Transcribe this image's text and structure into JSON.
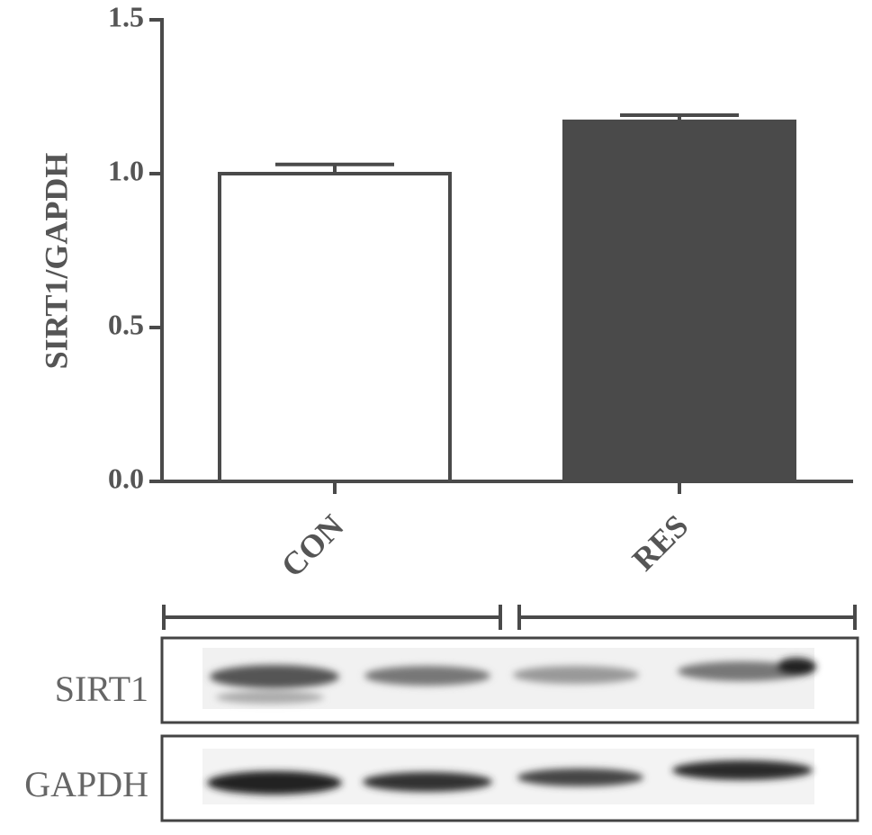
{
  "chart_data": {
    "type": "bar",
    "y_label": "SIRT1/GAPDH",
    "categories": [
      "CON",
      "RES"
    ],
    "values": [
      1.0,
      1.17
    ],
    "errors": [
      0.03,
      0.02
    ],
    "colors": [
      "#ffffff",
      "#4a4a4a"
    ],
    "ylim": [
      0,
      1.5
    ],
    "yticks": [
      {
        "value": 0,
        "label": "0.0"
      },
      {
        "value": 0.5,
        "label": "0.5"
      },
      {
        "value": 1,
        "label": "1.0"
      },
      {
        "value": 1.5,
        "label": "1.5"
      }
    ]
  },
  "blot": {
    "rows": [
      "SIRT1",
      "GAPDH"
    ]
  }
}
